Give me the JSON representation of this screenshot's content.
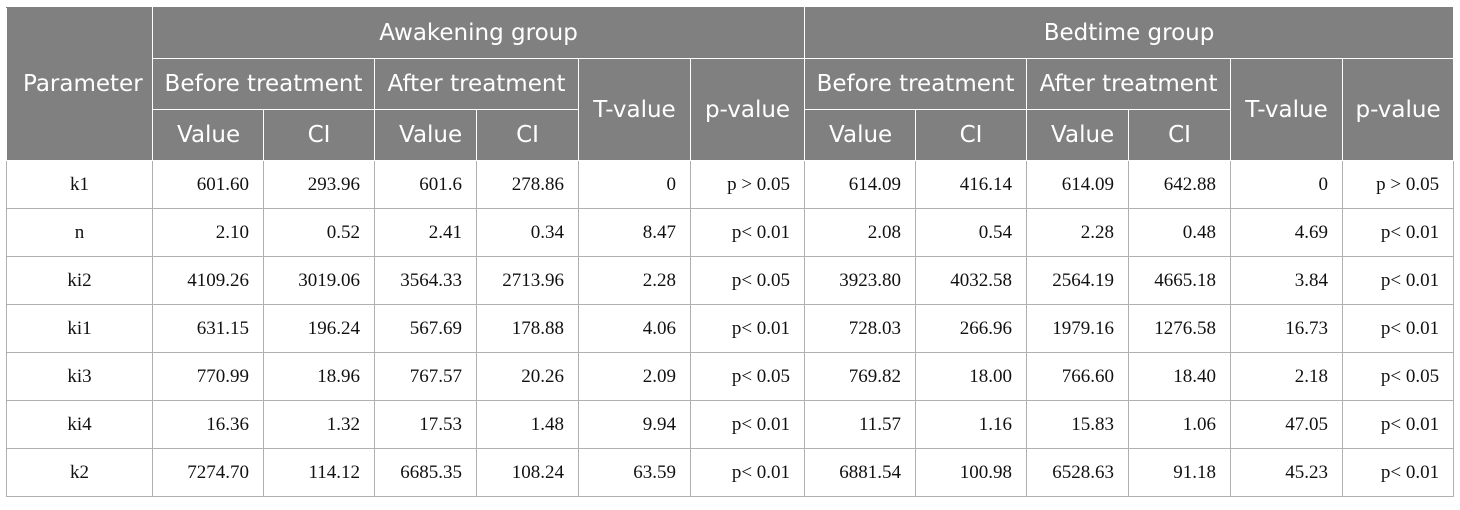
{
  "header": {
    "parameter": "Parameter",
    "groups": [
      "Awakening group",
      "Bedtime group"
    ],
    "before_treatment": "Before treatment",
    "after_treatment": "After treatment",
    "t_value": "T-value",
    "p_value": "p-value",
    "value": "Value",
    "ci": "CI"
  },
  "rows": [
    {
      "param": "k1",
      "cells": [
        "601.60",
        "293.96",
        "601.6",
        "278.86",
        "0",
        "p > 0.05",
        "614.09",
        "416.14",
        "614.09",
        "642.88",
        "0",
        "p > 0.05"
      ]
    },
    {
      "param": "n",
      "cells": [
        "2.10",
        "0.52",
        "2.41",
        "0.34",
        "8.47",
        "p< 0.01",
        "2.08",
        "0.54",
        "2.28",
        "0.48",
        "4.69",
        "p< 0.01"
      ]
    },
    {
      "param": "ki2",
      "cells": [
        "4109.26",
        "3019.06",
        "3564.33",
        "2713.96",
        "2.28",
        "p< 0.05",
        "3923.80",
        "4032.58",
        "2564.19",
        "4665.18",
        "3.84",
        "p< 0.01"
      ]
    },
    {
      "param": "ki1",
      "cells": [
        "631.15",
        "196.24",
        "567.69",
        "178.88",
        "4.06",
        "p< 0.01",
        "728.03",
        "266.96",
        "1979.16",
        "1276.58",
        "16.73",
        "p< 0.01"
      ]
    },
    {
      "param": "ki3",
      "cells": [
        "770.99",
        "18.96",
        "767.57",
        "20.26",
        "2.09",
        "p< 0.05",
        "769.82",
        "18.00",
        "766.60",
        "18.40",
        "2.18",
        "p< 0.05"
      ]
    },
    {
      "param": "ki4",
      "cells": [
        "16.36",
        "1.32",
        "17.53",
        "1.48",
        "9.94",
        "p< 0.01",
        "11.57",
        "1.16",
        "15.83",
        "1.06",
        "47.05",
        "p< 0.01"
      ]
    },
    {
      "param": "k2",
      "cells": [
        "7274.70",
        "114.12",
        "6685.35",
        "108.24",
        "63.59",
        "p< 0.01",
        "6881.54",
        "100.98",
        "6528.63",
        "91.18",
        "45.23",
        "p< 0.01"
      ]
    }
  ]
}
